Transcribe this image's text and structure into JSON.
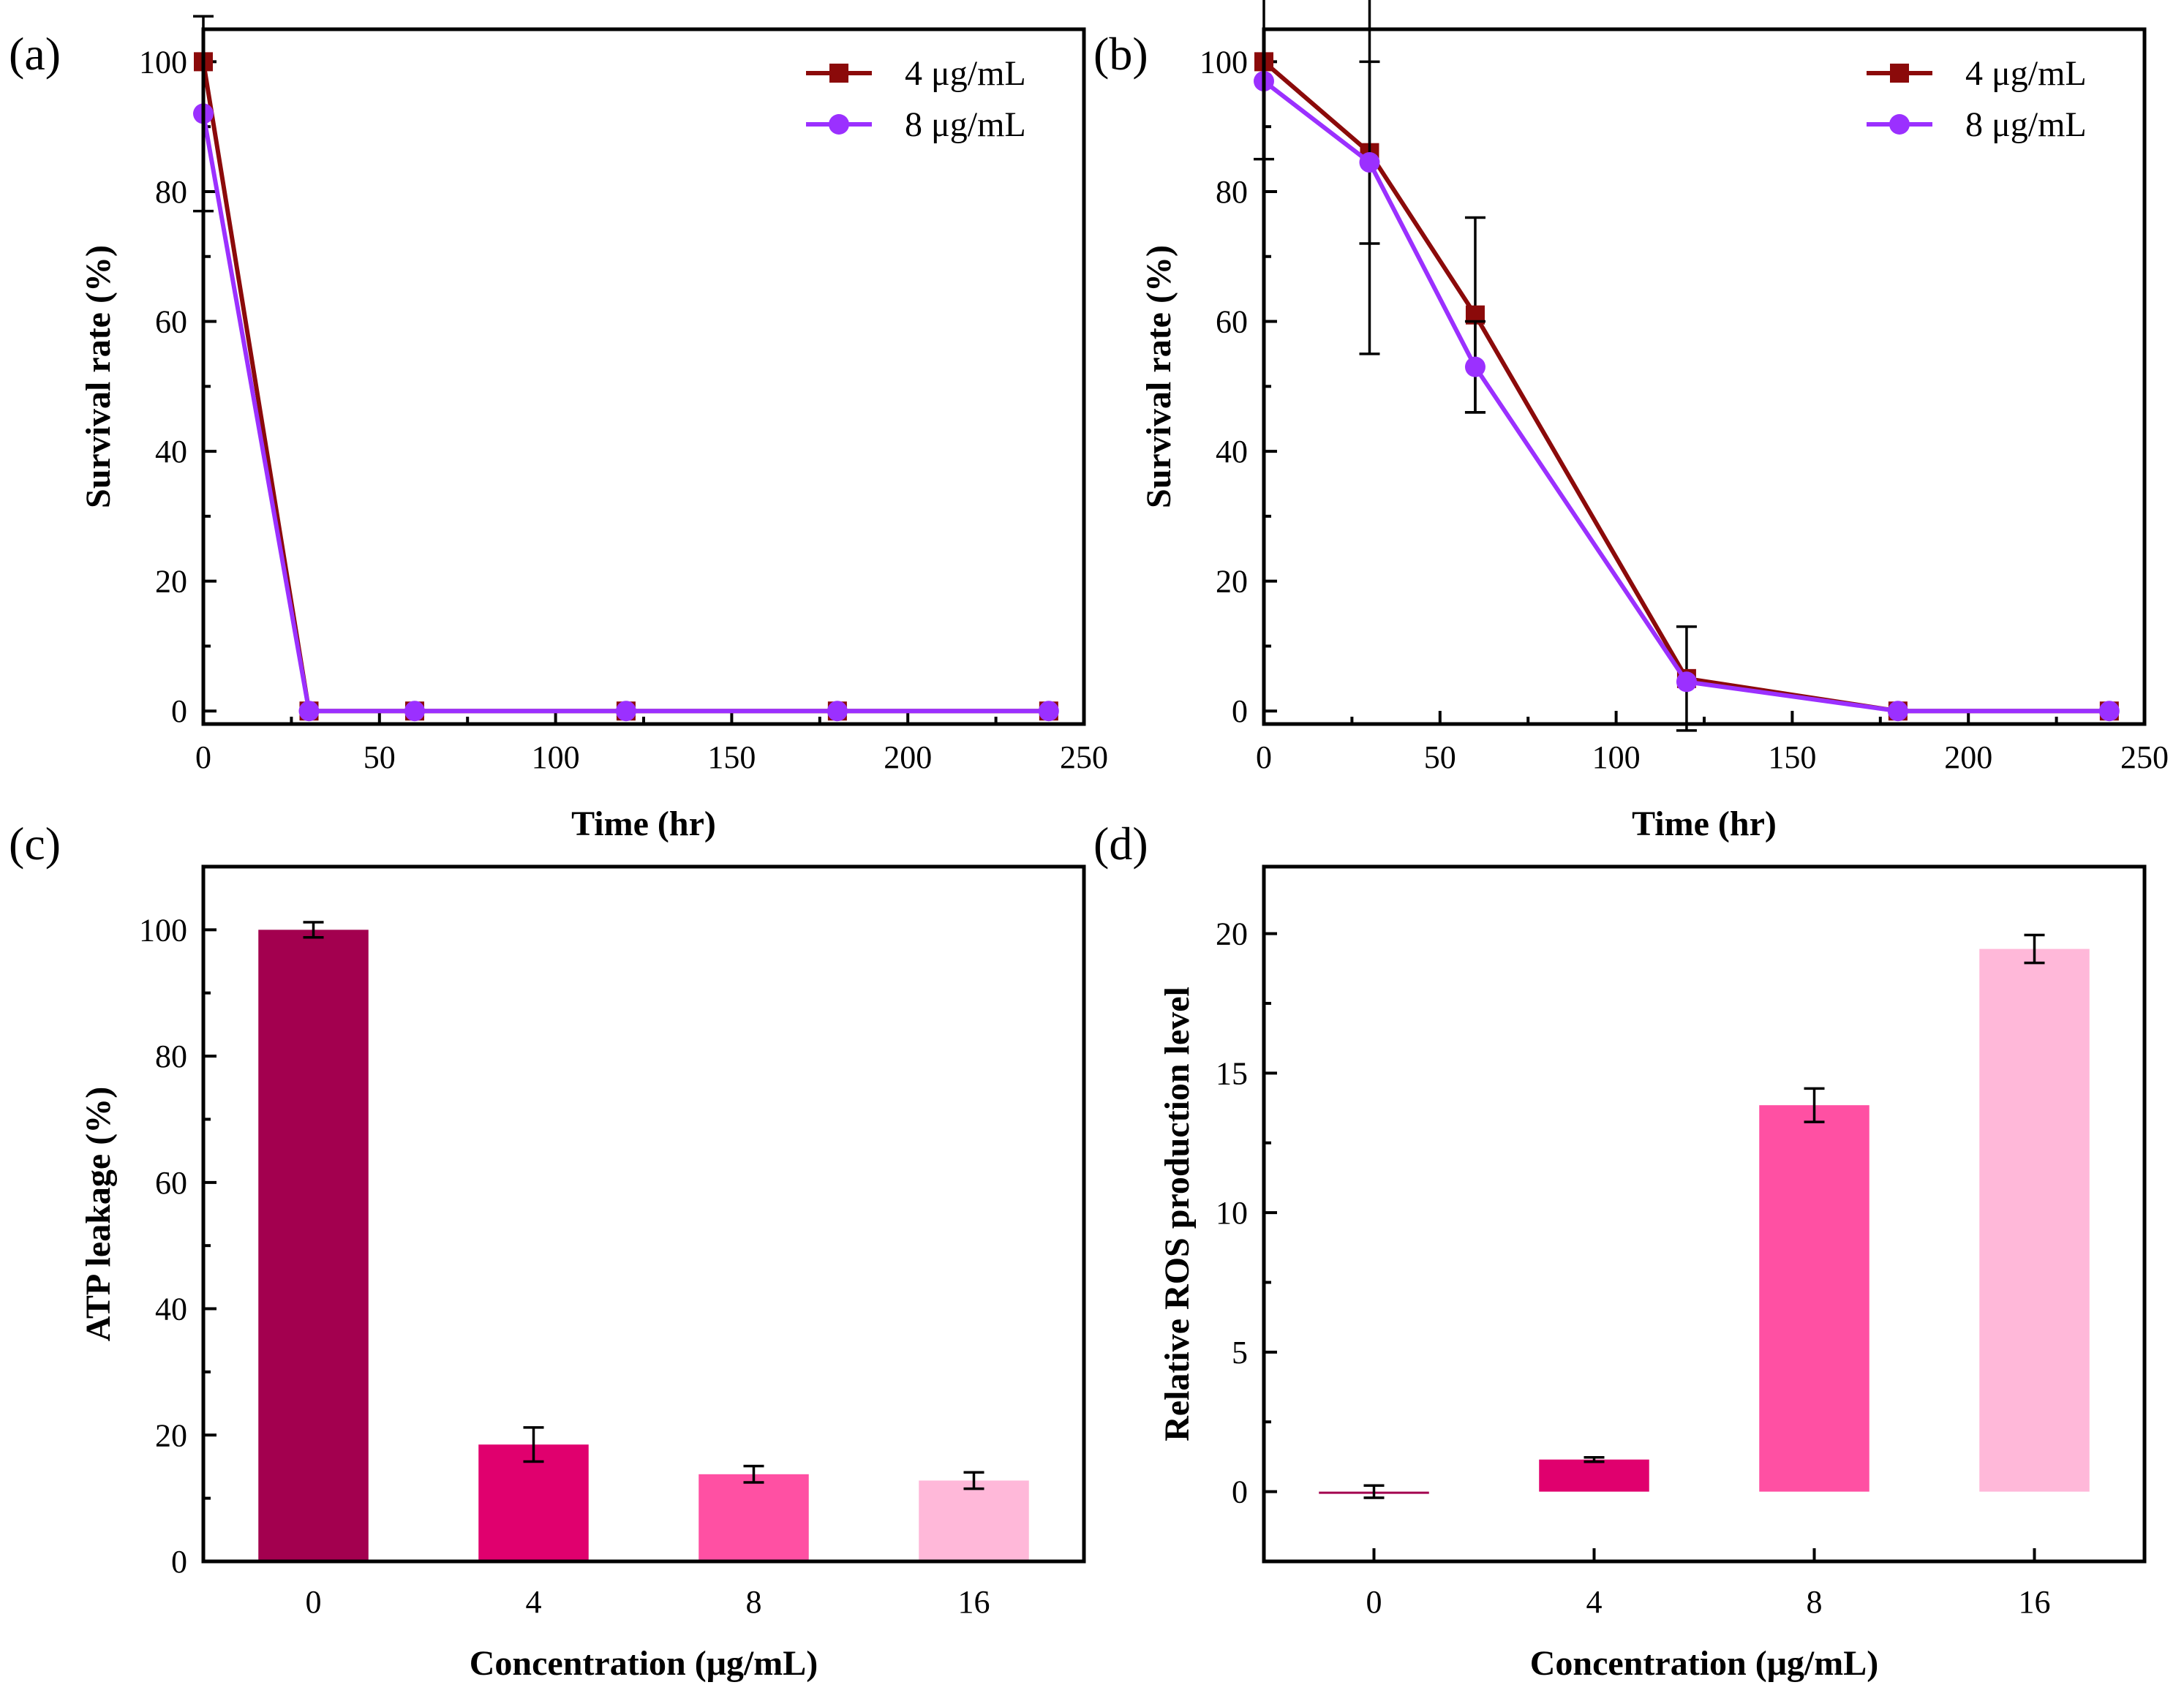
{
  "chart_data": [
    {
      "id": "a",
      "type": "line",
      "panel_label": "(a)",
      "xlabel": "Time (hr)",
      "ylabel": "Survival rate (%)",
      "xlim": [
        0,
        250
      ],
      "ylim": [
        -2,
        105
      ],
      "xticks": [
        0,
        50,
        100,
        150,
        200,
        250
      ],
      "yticks": [
        0,
        20,
        40,
        60,
        80,
        100
      ],
      "legend_position": "top-right",
      "series": [
        {
          "name": "4 μg/mL",
          "color": "#8b0a0a",
          "marker": "square",
          "x": [
            0,
            30,
            60,
            120,
            180,
            240
          ],
          "y": [
            100,
            0,
            0,
            0,
            0,
            0
          ],
          "err": [
            0,
            0,
            0,
            0,
            0,
            0
          ]
        },
        {
          "name": "8 μg/mL",
          "color": "#9b30ff",
          "marker": "circle",
          "x": [
            0,
            30,
            60,
            120,
            180,
            240
          ],
          "y": [
            92,
            0,
            0,
            0,
            0,
            0
          ],
          "err": [
            15,
            0,
            0,
            0,
            0,
            0
          ]
        }
      ]
    },
    {
      "id": "b",
      "type": "line",
      "panel_label": "(b)",
      "xlabel": "Time (hr)",
      "ylabel": "Survival rate (%)",
      "xlim": [
        0,
        250
      ],
      "ylim": [
        -2,
        105
      ],
      "xticks": [
        0,
        50,
        100,
        150,
        200,
        250
      ],
      "yticks": [
        0,
        20,
        40,
        60,
        80,
        100
      ],
      "legend_position": "top-right",
      "series": [
        {
          "name": "4 μg/mL",
          "color": "#8b0a0a",
          "marker": "square",
          "x": [
            0,
            30,
            60,
            120,
            180,
            240
          ],
          "y": [
            100,
            86,
            61,
            5,
            0,
            0
          ],
          "err": [
            15,
            14,
            15,
            8,
            0,
            0
          ]
        },
        {
          "name": "8 μg/mL",
          "color": "#9b30ff",
          "marker": "circle",
          "x": [
            0,
            30,
            60,
            120,
            180,
            240
          ],
          "y": [
            97,
            84.5,
            53,
            4.5,
            0,
            0
          ],
          "err": [
            0,
            29.5,
            7,
            0,
            0,
            0
          ]
        }
      ]
    },
    {
      "id": "c",
      "type": "bar",
      "panel_label": "(c)",
      "xlabel": "Concentration (μg/mL)",
      "ylabel": "ATP leakage (%)",
      "categories": [
        "0",
        "4",
        "8",
        "16"
      ],
      "values": [
        100,
        18.5,
        13.8,
        12.8
      ],
      "errors": [
        1.2,
        2.7,
        1.3,
        1.3
      ],
      "colors": [
        "#a3004f",
        "#e0006e",
        "#ff50a3",
        "#ffb8d9"
      ],
      "ylim": [
        0,
        110
      ],
      "yticks": [
        0,
        20,
        40,
        60,
        80,
        100
      ]
    },
    {
      "id": "d",
      "type": "bar",
      "panel_label": "(d)",
      "xlabel": "Concentration (μg/mL)",
      "ylabel": "Relative ROS production level",
      "categories": [
        "0",
        "4",
        "8",
        "16"
      ],
      "values": [
        0,
        1.15,
        13.85,
        19.45
      ],
      "errors": [
        0.22,
        0.08,
        0.6,
        0.5
      ],
      "colors": [
        "#a3004f",
        "#e0006e",
        "#ff50a3",
        "#ffb8d9"
      ],
      "ylim": [
        -2.5,
        22.4
      ],
      "yticks": [
        0,
        5,
        10,
        15,
        20
      ]
    }
  ]
}
